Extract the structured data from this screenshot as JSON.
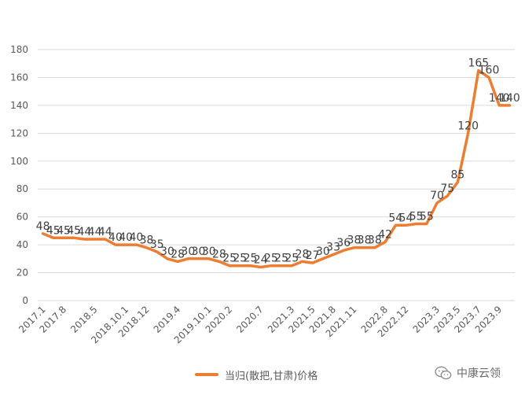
{
  "chart_data": {
    "type": "line",
    "series": [
      {
        "name": "当归(散把,甘肃)价格",
        "color": "#ED7D31",
        "points": [
          {
            "x": "2017.1",
            "y": 48
          },
          {
            "x": "2017.4",
            "y": 45
          },
          {
            "x": "2017.8",
            "y": 45
          },
          {
            "x": "2017.11",
            "y": 45
          },
          {
            "x": "2018.2",
            "y": 44
          },
          {
            "x": "2018.5",
            "y": 44
          },
          {
            "x": "2018.8",
            "y": 44
          },
          {
            "x": "2018.10",
            "y": 40
          },
          {
            "x": "2018.10.1",
            "y": 40
          },
          {
            "x": "2018.11",
            "y": 40
          },
          {
            "x": "2018.12",
            "y": 38
          },
          {
            "x": "2019.1",
            "y": 35
          },
          {
            "x": "2019.2",
            "y": 30
          },
          {
            "x": "2019.4",
            "y": 28
          },
          {
            "x": "2019.6",
            "y": 30
          },
          {
            "x": "2019.8",
            "y": 30
          },
          {
            "x": "2019.10.1",
            "y": 30
          },
          {
            "x": "2019.12",
            "y": 28
          },
          {
            "x": "2020.2",
            "y": 25
          },
          {
            "x": "2020.4",
            "y": 25
          },
          {
            "x": "2020.5",
            "y": 25
          },
          {
            "x": "2020.7",
            "y": 24
          },
          {
            "x": "2020.9",
            "y": 25
          },
          {
            "x": "2020.12",
            "y": 25
          },
          {
            "x": "2021.3",
            "y": 25
          },
          {
            "x": "2021.4",
            "y": 28
          },
          {
            "x": "2021.5",
            "y": 27
          },
          {
            "x": "2021.6",
            "y": 30
          },
          {
            "x": "2021.8",
            "y": 33
          },
          {
            "x": "2021.9",
            "y": 36
          },
          {
            "x": "2021.11",
            "y": 38
          },
          {
            "x": "2022.2",
            "y": 38
          },
          {
            "x": "2022.5",
            "y": 38
          },
          {
            "x": "2022.8",
            "y": 42
          },
          {
            "x": "2022.10",
            "y": 54
          },
          {
            "x": "2022.12",
            "y": 54
          },
          {
            "x": "2023.1",
            "y": 55
          },
          {
            "x": "2023.2",
            "y": 55
          },
          {
            "x": "2023.3",
            "y": 70
          },
          {
            "x": "2023.4",
            "y": 75
          },
          {
            "x": "2023.5",
            "y": 85
          },
          {
            "x": "2023.6",
            "y": 120
          },
          {
            "x": "2023.7",
            "y": 165
          },
          {
            "x": "2023.8",
            "y": 160
          },
          {
            "x": "2023.9",
            "y": 140
          },
          {
            "x": "2023.10",
            "y": 140
          }
        ]
      }
    ],
    "x_tick_labels": [
      "2017.1",
      "2017.8",
      "2018.5",
      "2018.10.1",
      "2018.12",
      "2019.4",
      "2019.10.1",
      "2020.2",
      "2020.7",
      "2021.3",
      "2021.5",
      "2021.8",
      "2021.11",
      "2022.8",
      "2022.12",
      "2023.3",
      "2023.5",
      "2023.7",
      "2023.9"
    ],
    "ylim": [
      0,
      180
    ],
    "y_ticks": [
      0,
      20,
      40,
      60,
      80,
      100,
      120,
      140,
      160,
      180
    ],
    "grid": true,
    "legend_position": "bottom"
  },
  "legend": {
    "label": "当归(散把,甘肃)价格",
    "color": "#ED7D31"
  },
  "watermark": {
    "text": "中康云领",
    "icon": "wechat-icon"
  }
}
